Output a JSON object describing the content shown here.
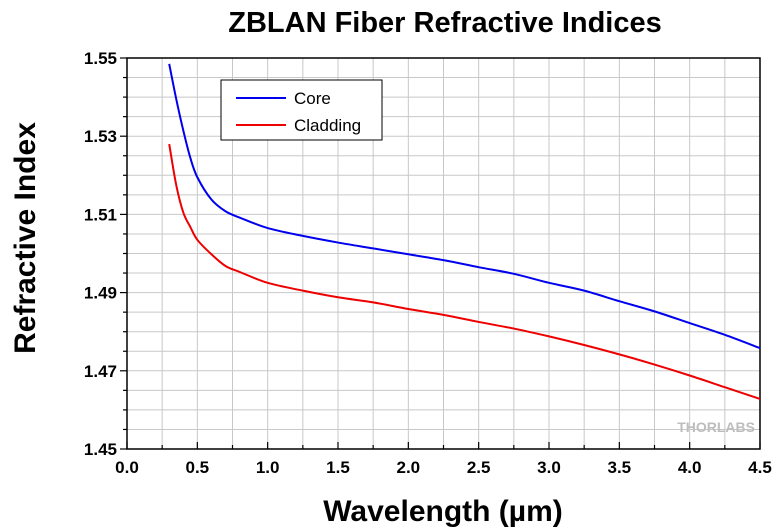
{
  "chart_data": {
    "type": "line",
    "title": "ZBLAN Fiber Refractive Indices",
    "xlabel": "Wavelength (µm)",
    "ylabel": "Refractive Index",
    "xlim": [
      0.0,
      4.5
    ],
    "ylim": [
      1.45,
      1.55
    ],
    "x_ticks": [
      "0.0",
      "0.5",
      "1.0",
      "1.5",
      "2.0",
      "2.5",
      "3.0",
      "3.5",
      "4.0",
      "4.5"
    ],
    "y_ticks": [
      "1.45",
      "1.47",
      "1.49",
      "1.51",
      "1.53",
      "1.55"
    ],
    "grid": true,
    "legend_position": "top-left",
    "watermark": "THORLABS",
    "series": [
      {
        "name": "Core",
        "color": "#0000ee",
        "x": [
          0.3,
          0.35,
          0.4,
          0.45,
          0.5,
          0.6,
          0.7,
          0.8,
          1.0,
          1.25,
          1.5,
          1.75,
          2.0,
          2.25,
          2.5,
          2.75,
          3.0,
          3.25,
          3.5,
          3.75,
          4.0,
          4.25,
          4.5
        ],
        "y": [
          1.5485,
          1.5395,
          1.5315,
          1.5245,
          1.5195,
          1.5138,
          1.5108,
          1.5092,
          1.5065,
          1.5045,
          1.5028,
          1.5013,
          1.4998,
          1.4983,
          1.4965,
          1.4948,
          1.4925,
          1.4905,
          1.4878,
          1.4852,
          1.4822,
          1.4792,
          1.4758
        ]
      },
      {
        "name": "Cladding",
        "color": "#ee0000",
        "x": [
          0.3,
          0.35,
          0.4,
          0.45,
          0.5,
          0.6,
          0.7,
          0.8,
          1.0,
          1.25,
          1.5,
          1.75,
          2.0,
          2.25,
          2.5,
          2.75,
          3.0,
          3.25,
          3.5,
          3.75,
          4.0,
          4.25,
          4.5
        ],
        "y": [
          1.528,
          1.5175,
          1.5105,
          1.5068,
          1.5035,
          1.4998,
          1.4968,
          1.4953,
          1.4925,
          1.4905,
          1.4888,
          1.4875,
          1.4858,
          1.4843,
          1.4825,
          1.4808,
          1.4788,
          1.4766,
          1.4742,
          1.4716,
          1.4688,
          1.4658,
          1.4628
        ]
      }
    ]
  }
}
